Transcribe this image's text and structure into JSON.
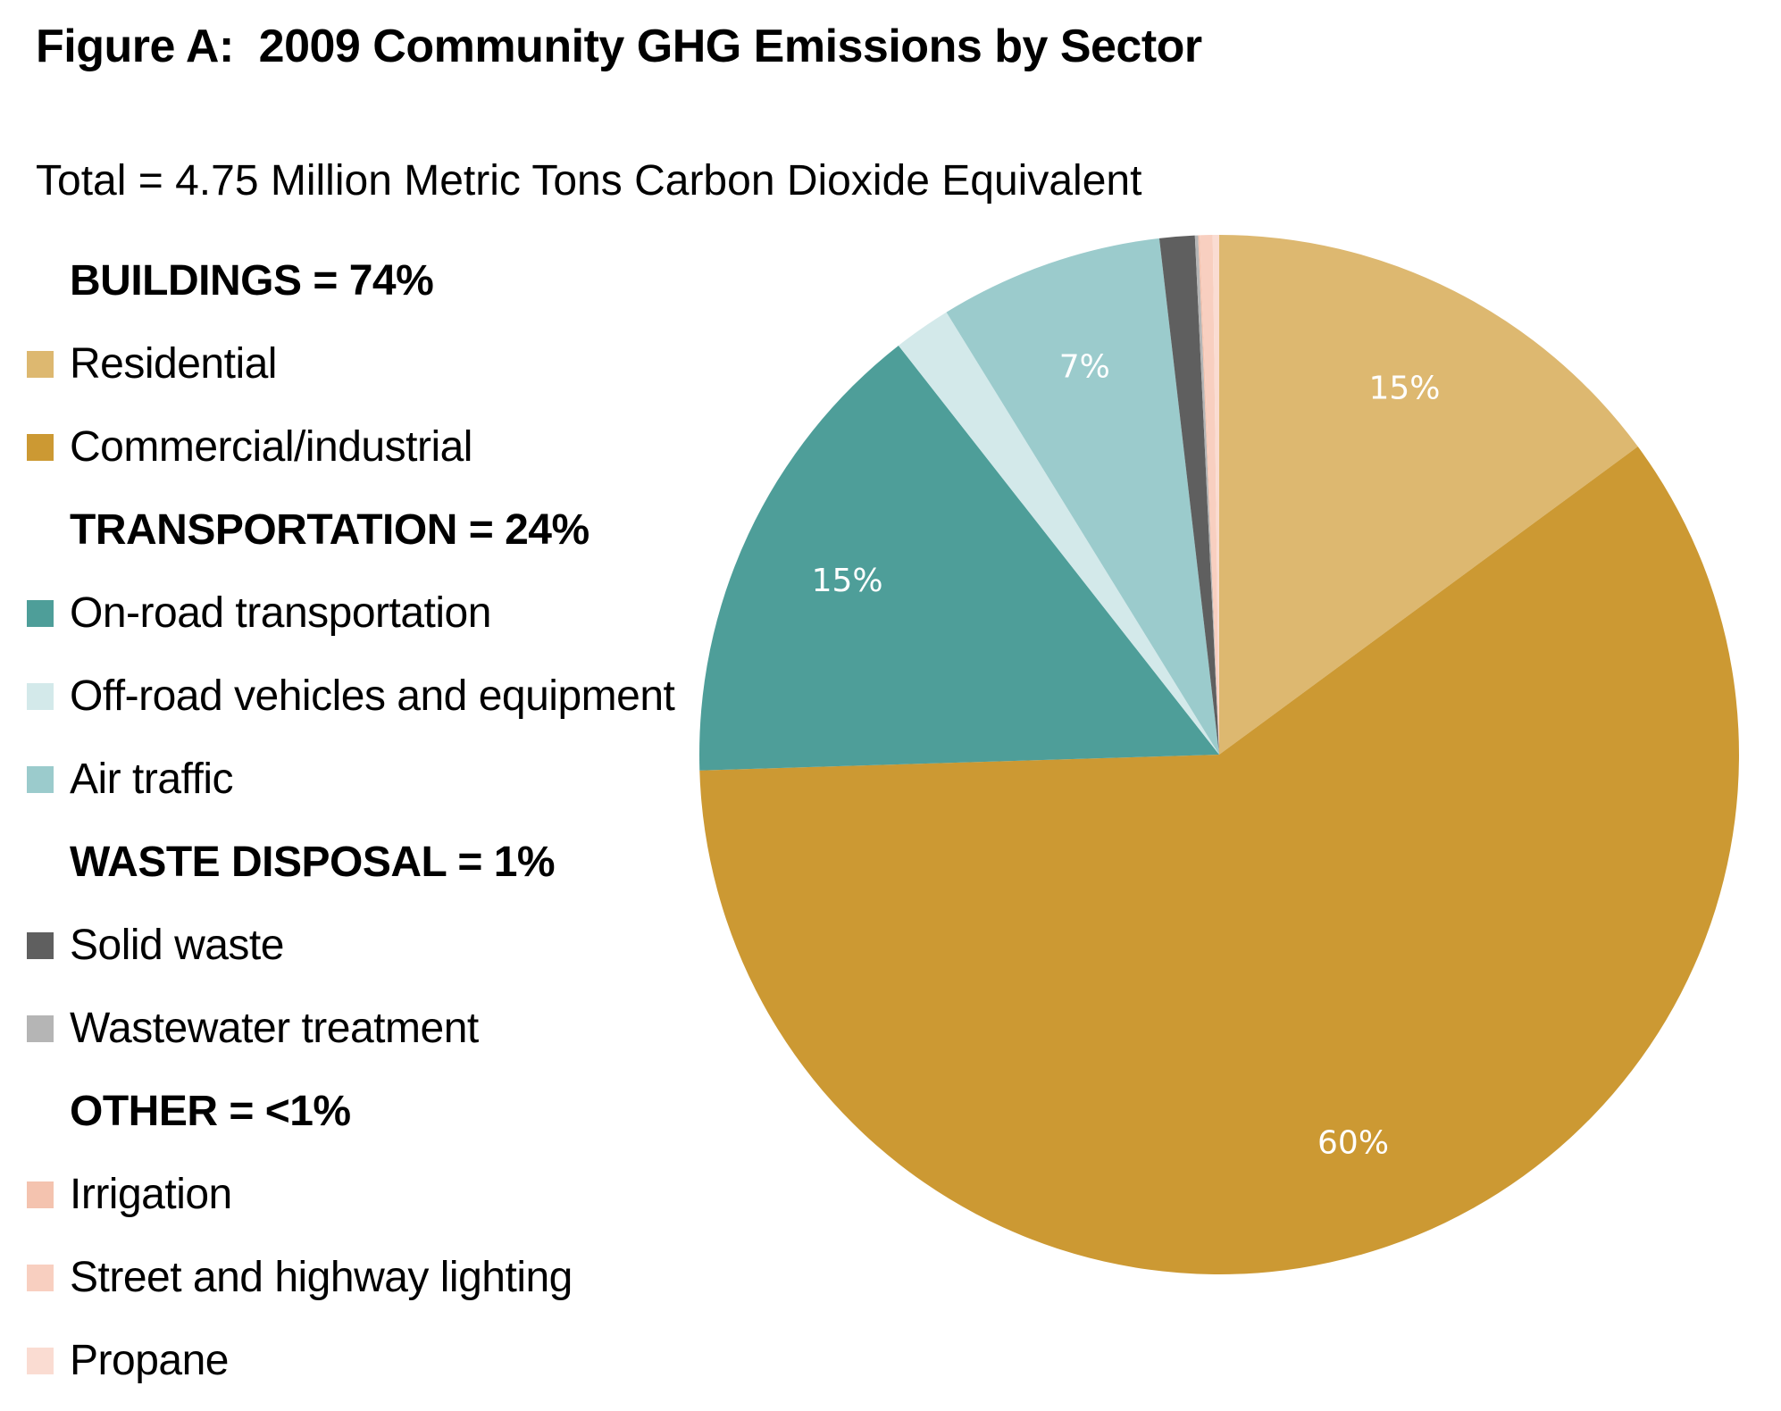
{
  "chart_data": {
    "type": "pie",
    "title": "Figure A:  2009 Community GHG Emissions by Sector",
    "subtitle": "Total = 4.75 Million Metric Tons Carbon Dioxide Equivalent",
    "legend_groups": [
      {
        "heading": "BUILDINGS = 74%",
        "items": [
          {
            "name": "Residential",
            "color": "#DDB870"
          },
          {
            "name": "Commercial/industrial",
            "color": "#CC9933"
          }
        ]
      },
      {
        "heading": "TRANSPORTATION = 24%",
        "items": [
          {
            "name": "On-road transportation",
            "color": "#4E9E99"
          },
          {
            "name": "Off-road vehicles and equipment",
            "color": "#D3E9EA"
          },
          {
            "name": "Air traffic",
            "color": "#9BCBCC"
          }
        ]
      },
      {
        "heading": "WASTE DISPOSAL = 1%",
        "items": [
          {
            "name": "Solid waste",
            "color": "#5F5F5F"
          },
          {
            "name": "Wastewater treatment",
            "color": "#B5B5B5"
          }
        ]
      },
      {
        "heading": "OTHER = <1%",
        "items": [
          {
            "name": "Irrigation",
            "color": "#F4C3AF"
          },
          {
            "name": "Street and highway lighting",
            "color": "#F8CFC0"
          },
          {
            "name": "Propane",
            "color": "#FADCD2"
          }
        ]
      }
    ],
    "slices": [
      {
        "name": "Residential",
        "value": 15,
        "label": "15%",
        "color": "#DDB870"
      },
      {
        "name": "Commercial/industrial",
        "value": 60,
        "label": "60%",
        "color": "#CC9933"
      },
      {
        "name": "On-road transportation",
        "value": 15,
        "label": "15%",
        "color": "#4E9E99"
      },
      {
        "name": "Off-road vehicles and equipment",
        "value": 1.8,
        "label": "",
        "color": "#D3E9EA"
      },
      {
        "name": "Air traffic",
        "value": 7,
        "label": "7%",
        "color": "#9BCBCC"
      },
      {
        "name": "Solid waste",
        "value": 1.1,
        "label": "",
        "color": "#5F5F5F"
      },
      {
        "name": "Wastewater treatment",
        "value": 0.1,
        "label": "",
        "color": "#B5B5B5"
      },
      {
        "name": "Irrigation",
        "value": 0.05,
        "label": "",
        "color": "#F4C3AF"
      },
      {
        "name": "Street and highway lighting",
        "value": 0.4,
        "label": "",
        "color": "#F8CFC0"
      },
      {
        "name": "Propane",
        "value": 0.2,
        "label": "",
        "color": "#FADCD2"
      }
    ]
  }
}
